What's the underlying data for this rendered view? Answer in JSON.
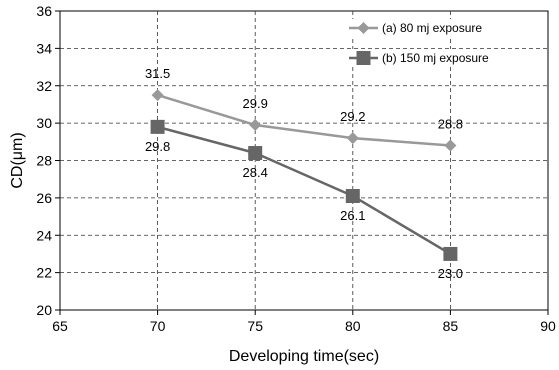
{
  "chart_data": {
    "type": "line",
    "xlabel": "Developing time(sec)",
    "ylabel": "CD(μm)",
    "xlim": [
      65,
      90
    ],
    "ylim": [
      20,
      36
    ],
    "xticks": [
      "65",
      "70",
      "75",
      "80",
      "85",
      "90"
    ],
    "yticks": [
      "20",
      "22",
      "24",
      "26",
      "28",
      "30",
      "32",
      "34",
      "36"
    ],
    "grid": true,
    "legend_position": "top-right",
    "series": [
      {
        "name": "(a) 80 mj exposure",
        "marker": "diamond",
        "color": "#999999",
        "x": [
          70,
          75,
          80,
          85
        ],
        "y": [
          31.5,
          29.9,
          29.2,
          28.8
        ],
        "labels": [
          "31.5",
          "29.9",
          "29.2",
          "28.8"
        ],
        "label_position": "above"
      },
      {
        "name": "(b) 150 mj exposure",
        "marker": "square",
        "color": "#666666",
        "x": [
          70,
          75,
          80,
          85
        ],
        "y": [
          29.8,
          28.4,
          26.1,
          23.0
        ],
        "labels": [
          "29.8",
          "28.4",
          "26.1",
          "23.0"
        ],
        "label_position": "below"
      }
    ]
  }
}
